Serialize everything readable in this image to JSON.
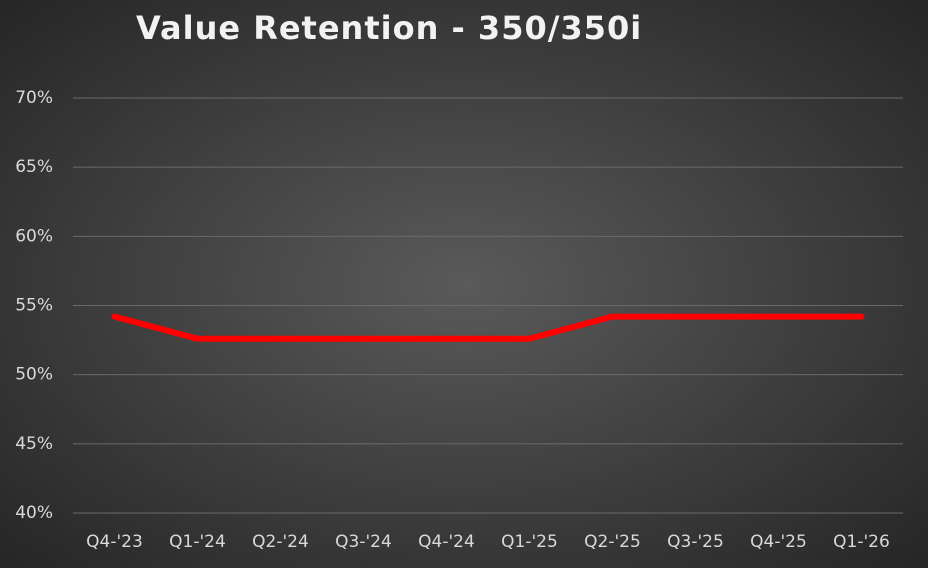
{
  "chart_data": {
    "type": "line",
    "title": "Value Retention - 350/350i",
    "categories": [
      "Q4-'23",
      "Q1-'24",
      "Q2-'24",
      "Q3-'24",
      "Q4-'24",
      "Q1-'25",
      "Q2-'25",
      "Q3-'25",
      "Q4-'25",
      "Q1-'26"
    ],
    "series": [
      {
        "name": "350/350i",
        "color": "#ff0000",
        "values": [
          54.2,
          52.6,
          52.6,
          52.6,
          52.6,
          52.6,
          54.2,
          54.2,
          54.2,
          54.2
        ]
      }
    ],
    "ylim": [
      40,
      70
    ],
    "yticks": [
      {
        "value": 40,
        "label": "40%"
      },
      {
        "value": 45,
        "label": "45%"
      },
      {
        "value": 50,
        "label": "50%"
      },
      {
        "value": 55,
        "label": "55%"
      },
      {
        "value": 60,
        "label": "60%"
      },
      {
        "value": 65,
        "label": "65%"
      },
      {
        "value": 70,
        "label": "70%"
      }
    ],
    "grid": true
  }
}
